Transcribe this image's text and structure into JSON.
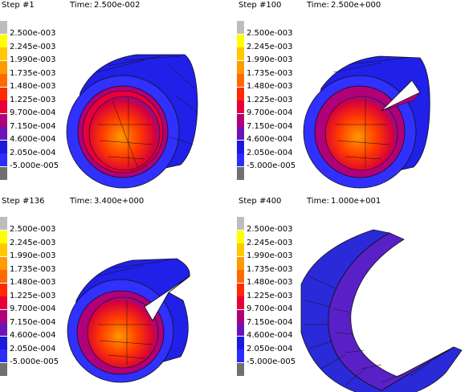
{
  "panels": [
    {
      "step_label": "Step #1",
      "time_label": "Time:",
      "time_value": "2.500e-002"
    },
    {
      "step_label": "Step #100",
      "time_label": "Time:",
      "time_value": "2.500e+000"
    },
    {
      "step_label": "Step #136",
      "time_label": "Time:",
      "time_value": "3.400e+000"
    },
    {
      "step_label": "Step #400",
      "time_label": "Time:",
      "time_value": "1.000e+001"
    }
  ],
  "legend": {
    "values": [
      "2.500e-003",
      "2.245e-003",
      "1.990e-003",
      "1.735e-003",
      "1.480e-003",
      "1.225e-003",
      "9.700e-004",
      "7.150e-004",
      "4.600e-004",
      "2.050e-004",
      "-5.000e-005"
    ],
    "colors": [
      "#bdbdbd",
      "#ffff00",
      "#ffc800",
      "#ff9a00",
      "#ff6a00",
      "#ff2a00",
      "#e8003a",
      "#b0007a",
      "#6a14b8",
      "#1a1adc",
      "#2c2cff",
      "#707070"
    ]
  }
}
